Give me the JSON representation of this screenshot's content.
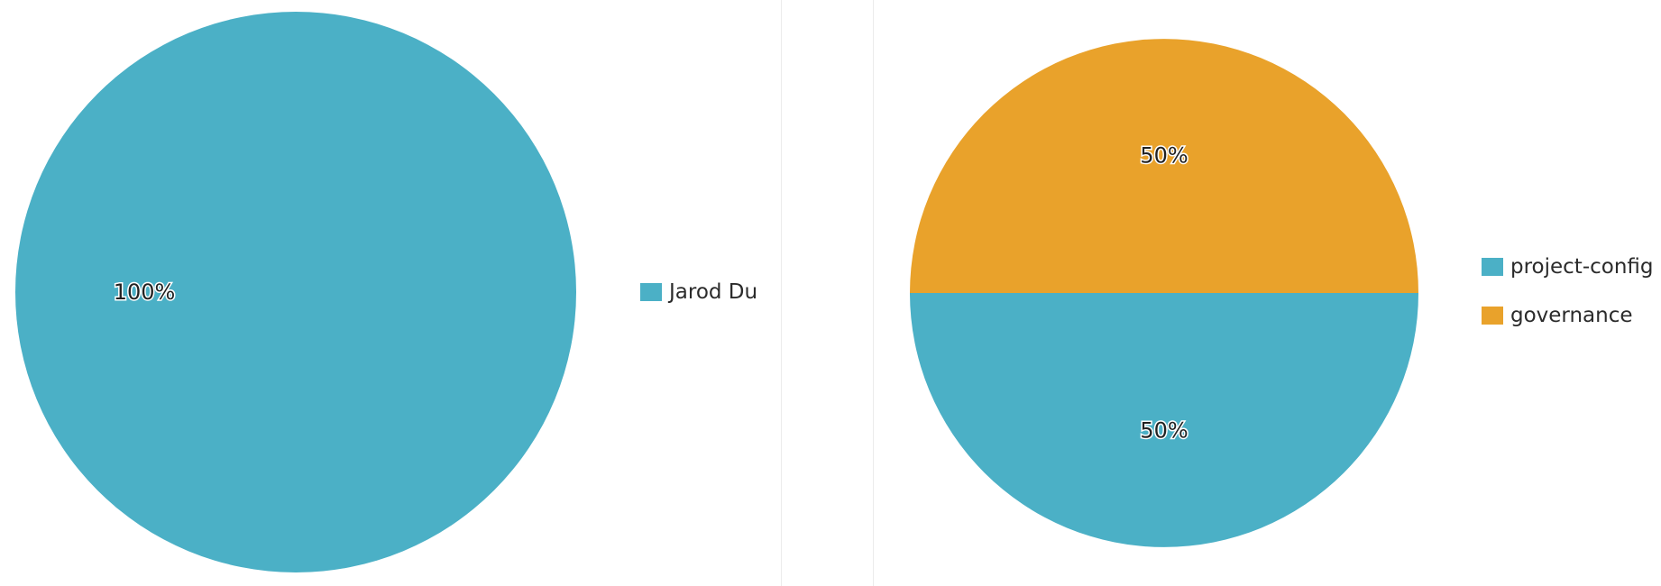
{
  "chart_data": [
    {
      "type": "pie",
      "categories": [
        "Jarod Du"
      ],
      "values": [
        100
      ],
      "value_labels": [
        "100%"
      ],
      "colors": [
        "#4bb0c6"
      ],
      "legend_position": "right"
    },
    {
      "type": "pie",
      "categories": [
        "project-config",
        "governance"
      ],
      "values": [
        50,
        50
      ],
      "value_labels": [
        "50%",
        "50%"
      ],
      "colors": [
        "#4bb0c6",
        "#e9a22b"
      ],
      "legend_position": "right"
    }
  ]
}
